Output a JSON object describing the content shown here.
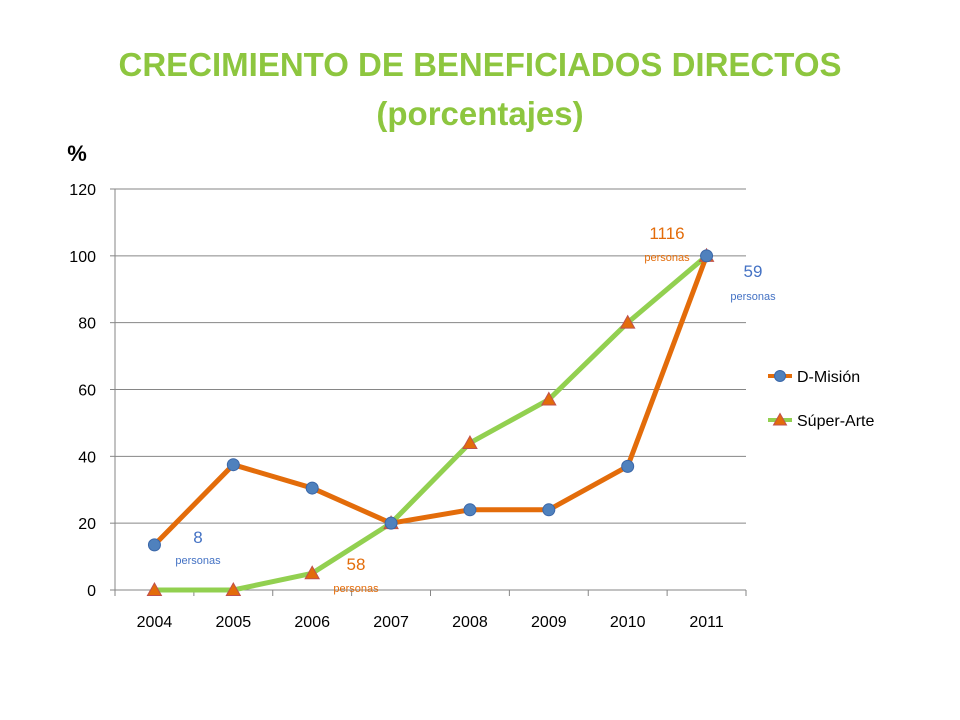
{
  "chart_data": {
    "type": "line",
    "title": "CRECIMIENTO DE BENEFICIADOS DIRECTOS",
    "subtitle": "(porcentajes)",
    "ylabel": "%",
    "xlabel": "",
    "categories": [
      "2004",
      "2005",
      "2006",
      "2007",
      "2008",
      "2009",
      "2010",
      "2011"
    ],
    "ylim": [
      0,
      120
    ],
    "yticks": [
      "0",
      "20",
      "40",
      "60",
      "80",
      "100",
      "120"
    ],
    "grid": true,
    "legend_position": "right",
    "series": [
      {
        "name": "D-Misión",
        "color": "#e36c0a",
        "marker": "circle",
        "marker_color": "#4f81bd",
        "values": [
          13.5,
          37.5,
          30.5,
          20,
          24,
          24,
          37,
          100
        ]
      },
      {
        "name": "Súper-Arte",
        "color": "#92d050",
        "marker": "triangle",
        "marker_color": "#e36c0a",
        "values": [
          0,
          0,
          5,
          20,
          44,
          57,
          80,
          100
        ]
      }
    ],
    "annotations": [
      {
        "id": "ann-d2004",
        "number": "8",
        "unit": "personas",
        "color": "#4472c4"
      },
      {
        "id": "ann-s2006",
        "number": "58",
        "unit": "personas",
        "color": "#e36c0a"
      },
      {
        "id": "ann-s2011",
        "number": "1116",
        "unit": "personas",
        "color": "#e36c0a"
      },
      {
        "id": "ann-d2011",
        "number": "59",
        "unit": "personas",
        "color": "#4472c4"
      }
    ]
  }
}
